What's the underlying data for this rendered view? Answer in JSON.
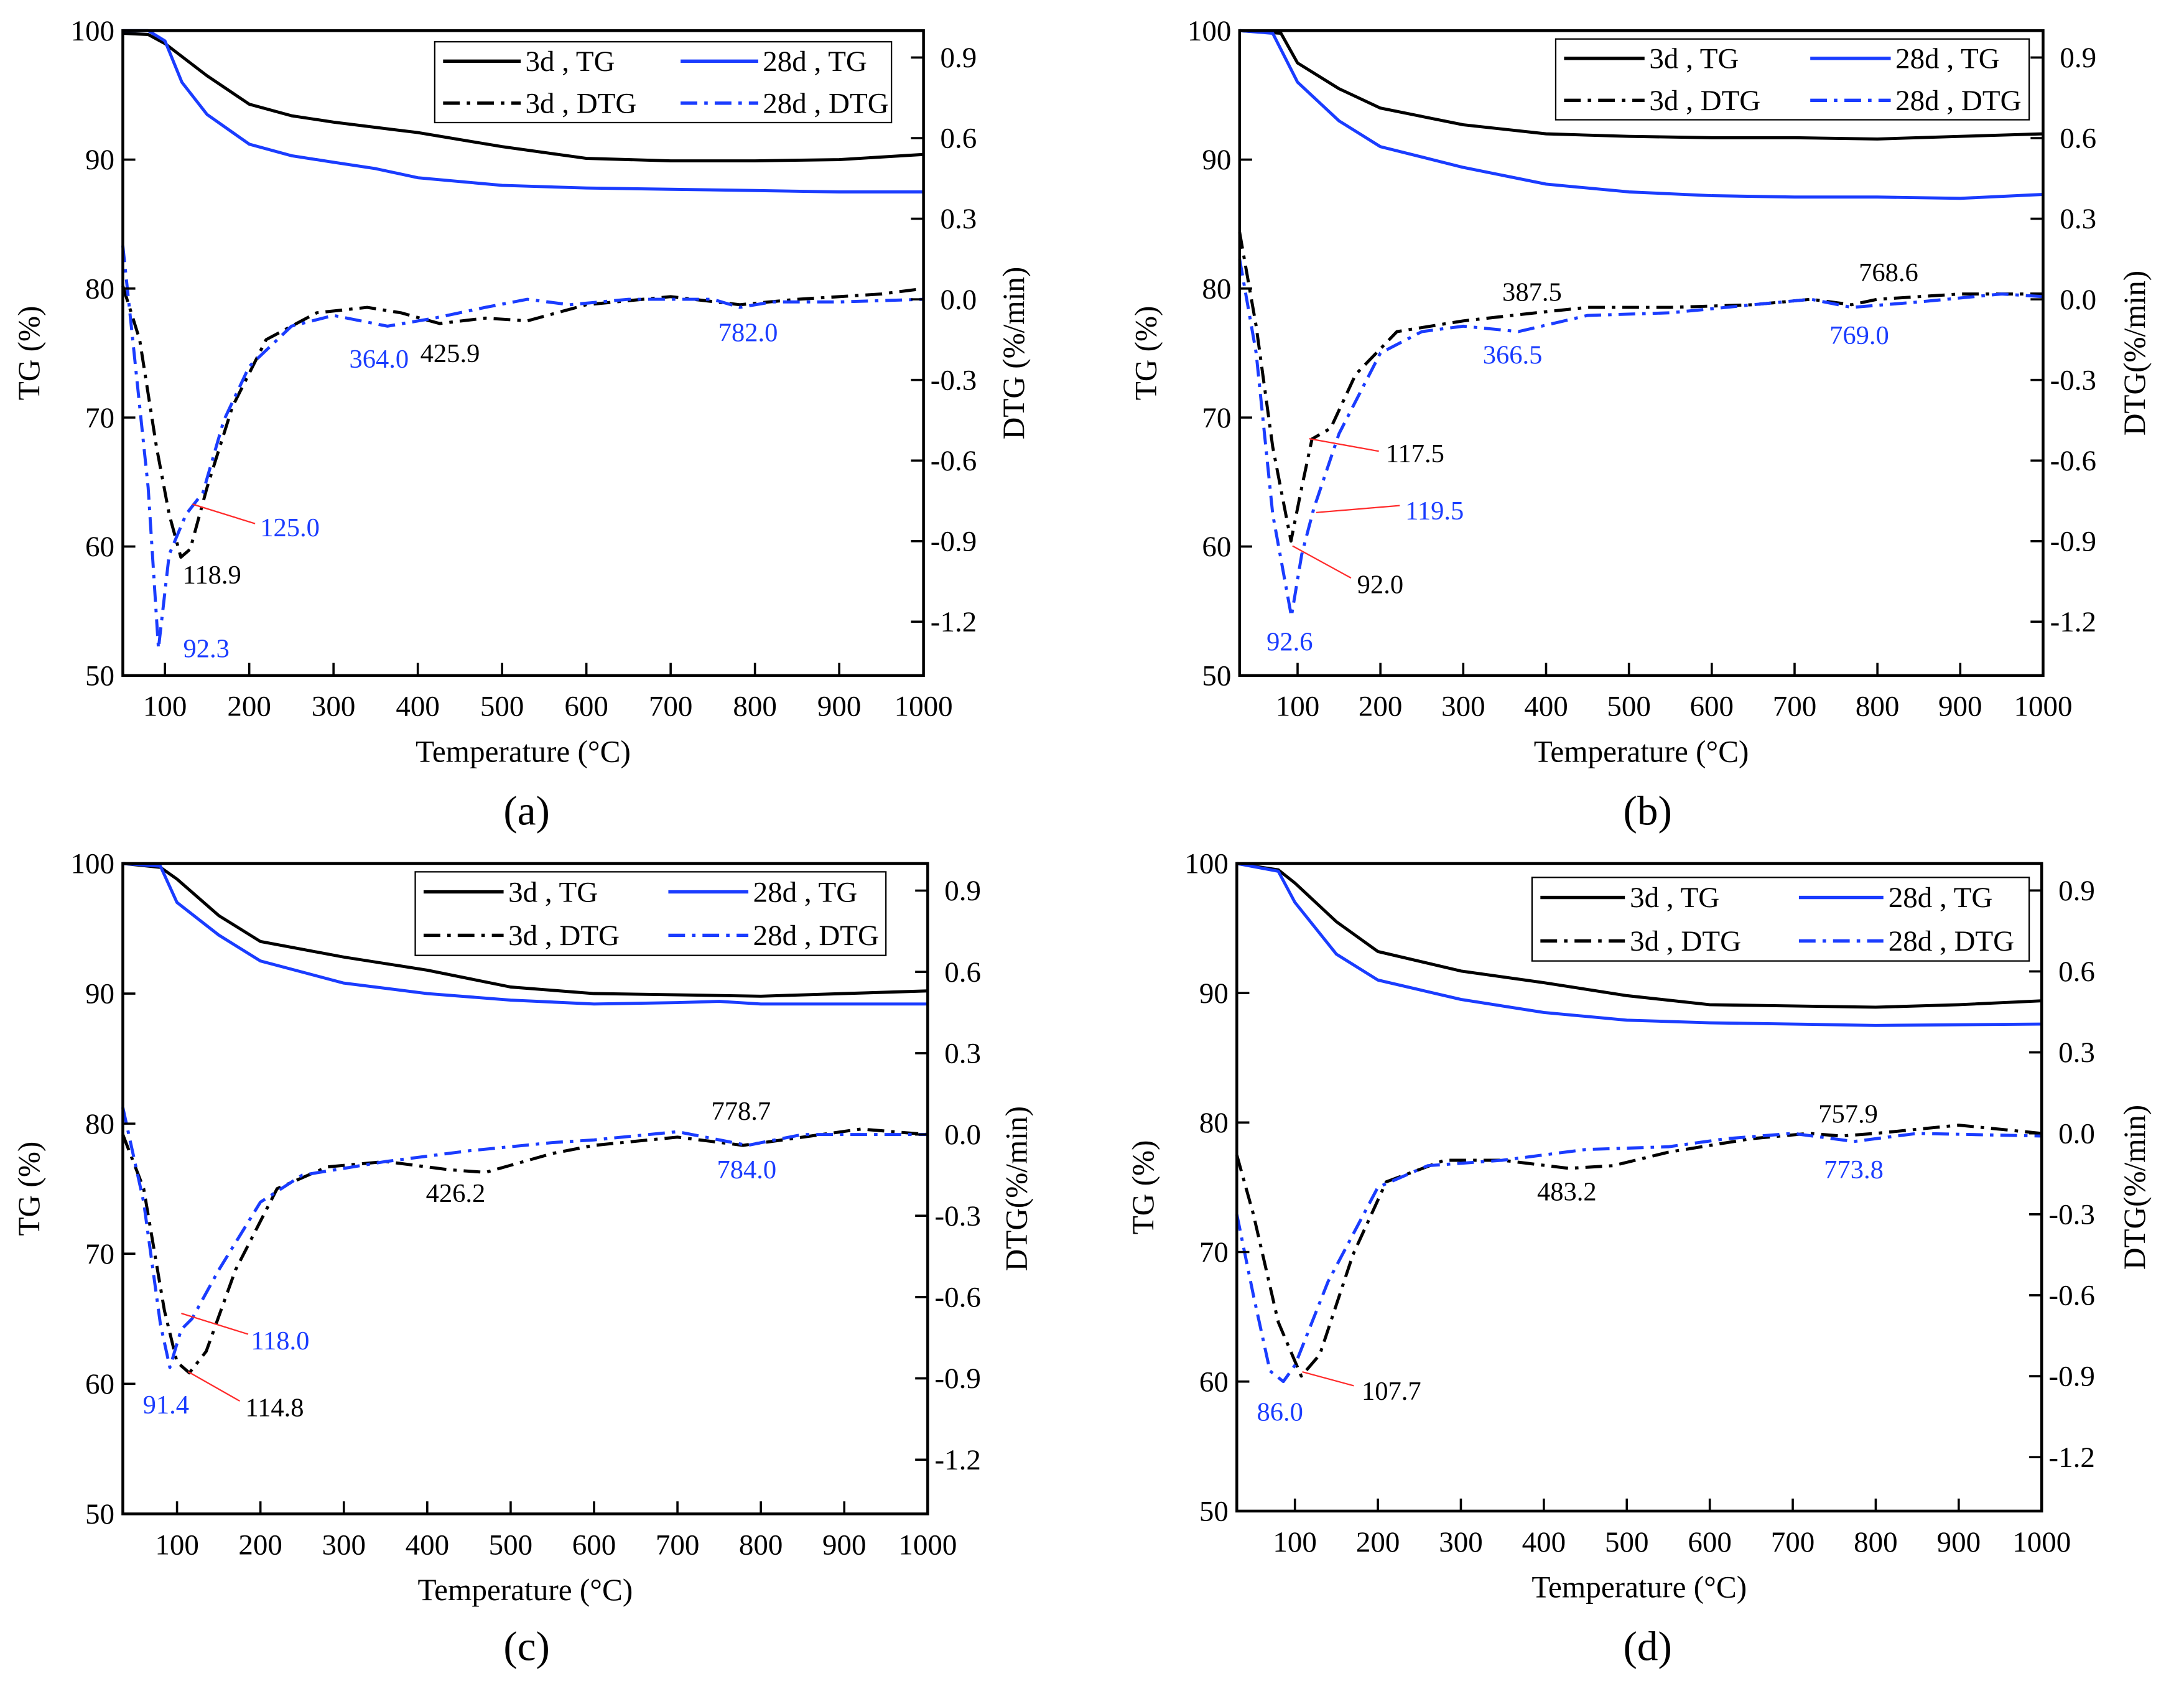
{
  "chart_data": [
    {
      "type": "line",
      "panel_label": "(a)",
      "xlabel": "Temperature (°C)",
      "ylabel": "TG (%)",
      "y2label": "DTG (%/min)",
      "xlim": [
        50,
        1000
      ],
      "ylim": [
        50,
        100
      ],
      "y2lim": [
        -1.4,
        1.0
      ],
      "xticks": [
        100,
        200,
        300,
        400,
        500,
        600,
        700,
        800,
        900,
        1000
      ],
      "yticks": [
        50,
        60,
        70,
        80,
        90,
        100
      ],
      "y2ticks": [
        "0.9",
        "0.6",
        "0.3",
        "0.0",
        "-0.3",
        "-0.6",
        "-0.9",
        "-1.2"
      ],
      "legend": [
        "3d , TG",
        "28d , TG",
        "3d , DTG",
        "28d , DTG"
      ],
      "legend_position": "top-right",
      "series": [
        {
          "name": "3d , TG",
          "axis": "left",
          "color": "#000000",
          "style": "solid",
          "x": [
            50,
            80,
            100,
            150,
            200,
            250,
            300,
            400,
            500,
            600,
            700,
            800,
            900,
            1000
          ],
          "y": [
            99.8,
            99.7,
            99,
            96.5,
            94.3,
            93.4,
            92.9,
            92.1,
            91,
            90.1,
            89.9,
            89.9,
            90,
            90.4
          ]
        },
        {
          "name": "28d , TG",
          "axis": "left",
          "color": "#1a3cff",
          "style": "solid",
          "x": [
            50,
            80,
            100,
            120,
            150,
            200,
            250,
            300,
            350,
            400,
            500,
            600,
            700,
            800,
            900,
            1000
          ],
          "y": [
            100,
            100,
            99.2,
            96,
            93.5,
            91.2,
            90.3,
            89.8,
            89.3,
            88.6,
            88,
            87.8,
            87.7,
            87.6,
            87.5,
            87.5
          ]
        },
        {
          "name": "3d , DTG",
          "axis": "right",
          "color": "#000000",
          "style": "dashdot",
          "x": [
            50,
            70,
            90,
            105,
            118.9,
            130,
            150,
            180,
            220,
            280,
            340,
            380,
            425.9,
            480,
            530,
            600,
            700,
            782,
            850,
            950,
            1000
          ],
          "y": [
            0.05,
            -0.15,
            -0.55,
            -0.8,
            -0.96,
            -0.93,
            -0.7,
            -0.4,
            -0.15,
            -0.05,
            -0.03,
            -0.05,
            -0.09,
            -0.07,
            -0.08,
            -0.02,
            0.01,
            -0.02,
            0.0,
            0.02,
            0.04
          ]
        },
        {
          "name": "28d , DTG",
          "axis": "right",
          "color": "#1a3cff",
          "style": "dashdot",
          "x": [
            50,
            60,
            80,
            92.3,
            105,
            125,
            145,
            170,
            200,
            250,
            300,
            364,
            420,
            480,
            530,
            580,
            650,
            750,
            782,
            820,
            900,
            1000
          ],
          "y": [
            0.2,
            -0.1,
            -0.7,
            -1.3,
            -0.95,
            -0.8,
            -0.72,
            -0.45,
            -0.25,
            -0.1,
            -0.06,
            -0.1,
            -0.07,
            -0.03,
            0.0,
            -0.02,
            0.0,
            0.0,
            -0.03,
            -0.01,
            -0.01,
            0.0
          ]
        }
      ],
      "annotations": [
        {
          "text": "125.0",
          "color": "#1a3cff",
          "leader": true
        },
        {
          "text": "118.9",
          "color": "#000000",
          "leader": false
        },
        {
          "text": "92.3",
          "color": "#1a3cff",
          "leader": false
        },
        {
          "text": "364.0",
          "color": "#1a3cff",
          "leader": false
        },
        {
          "text": "425.9",
          "color": "#000000",
          "leader": false
        },
        {
          "text": "782.0",
          "color": "#1a3cff",
          "leader": false
        }
      ]
    },
    {
      "type": "line",
      "panel_label": "(b)",
      "xlabel": "Temperature (°C)",
      "ylabel": "TG (%)",
      "y2label": "DTG(%/min)",
      "xlim": [
        30,
        1000
      ],
      "ylim": [
        50,
        100
      ],
      "y2lim": [
        -1.4,
        1.0
      ],
      "xticks": [
        100,
        200,
        300,
        400,
        500,
        600,
        700,
        800,
        900,
        1000
      ],
      "yticks": [
        50,
        60,
        70,
        80,
        90,
        100
      ],
      "y2ticks": [
        "0.9",
        "0.6",
        "0.3",
        "0.0",
        "-0.3",
        "-0.6",
        "-0.9",
        "-1.2"
      ],
      "legend": [
        "3d , TG",
        "28d , TG",
        "3d , DTG",
        "28d , DTG"
      ],
      "legend_position": "top-right",
      "series": [
        {
          "name": "3d , TG",
          "axis": "left",
          "color": "#000000",
          "style": "solid",
          "x": [
            30,
            80,
            100,
            150,
            200,
            300,
            400,
            500,
            600,
            700,
            800,
            900,
            1000
          ],
          "y": [
            100,
            99.8,
            97.5,
            95.5,
            94,
            92.7,
            92,
            91.8,
            91.7,
            91.7,
            91.6,
            91.8,
            92
          ]
        },
        {
          "name": "28d , TG",
          "axis": "left",
          "color": "#1a3cff",
          "style": "solid",
          "x": [
            30,
            70,
            100,
            150,
            200,
            300,
            400,
            500,
            600,
            700,
            800,
            900,
            1000
          ],
          "y": [
            100,
            99.8,
            96,
            93,
            91,
            89.4,
            88.1,
            87.5,
            87.2,
            87.1,
            87.1,
            87,
            87.3
          ]
        },
        {
          "name": "3d , DTG",
          "axis": "right",
          "color": "#000000",
          "style": "dashdot",
          "x": [
            30,
            50,
            70,
            92,
            105,
            117.5,
            140,
            170,
            220,
            300,
            387.5,
            450,
            550,
            650,
            720,
            768.6,
            800,
            900,
            1000
          ],
          "y": [
            0.25,
            -0.1,
            -0.55,
            -0.9,
            -0.7,
            -0.52,
            -0.48,
            -0.28,
            -0.12,
            -0.08,
            -0.05,
            -0.03,
            -0.03,
            -0.02,
            0.0,
            -0.02,
            0.0,
            0.02,
            0.02
          ]
        },
        {
          "name": "28d , DTG",
          "axis": "right",
          "color": "#1a3cff",
          "style": "dashdot",
          "x": [
            30,
            50,
            70,
            92.6,
            105,
            119.5,
            150,
            200,
            250,
            300,
            366.5,
            450,
            550,
            650,
            720,
            769,
            850,
            950,
            1000
          ],
          "y": [
            0.15,
            -0.2,
            -0.8,
            -1.18,
            -0.95,
            -0.78,
            -0.5,
            -0.2,
            -0.12,
            -0.1,
            -0.12,
            -0.06,
            -0.05,
            -0.02,
            0.0,
            -0.03,
            -0.01,
            0.02,
            0.01
          ]
        }
      ],
      "annotations": [
        {
          "text": "387.5",
          "color": "#000000",
          "leader": false
        },
        {
          "text": "768.6",
          "color": "#000000",
          "leader": false
        },
        {
          "text": "366.5",
          "color": "#1a3cff",
          "leader": false
        },
        {
          "text": "769.0",
          "color": "#1a3cff",
          "leader": false
        },
        {
          "text": "117.5",
          "color": "#000000",
          "leader": true
        },
        {
          "text": "119.5",
          "color": "#1a3cff",
          "leader": true
        },
        {
          "text": "92.0",
          "color": "#000000",
          "leader": true
        },
        {
          "text": "92.6",
          "color": "#1a3cff",
          "leader": false
        }
      ]
    },
    {
      "type": "line",
      "panel_label": "(c)",
      "xlabel": "Temperature (°C)",
      "ylabel": "TG (%)",
      "y2label": "DTG(%/min)",
      "xlim": [
        35,
        1000
      ],
      "ylim": [
        50,
        100
      ],
      "y2lim": [
        -1.4,
        1.0
      ],
      "xticks": [
        100,
        200,
        300,
        400,
        500,
        600,
        700,
        800,
        900,
        1000
      ],
      "yticks": [
        50,
        60,
        70,
        80,
        90,
        100
      ],
      "y2ticks": [
        "0.9",
        "0.6",
        "0.3",
        "0.0",
        "-0.3",
        "-0.6",
        "-0.9",
        "-1.2"
      ],
      "legend": [
        "3d , TG",
        "28d , TG",
        "3d , DTG",
        "28d , DTG"
      ],
      "legend_position": "top-right",
      "series": [
        {
          "name": "3d , TG",
          "axis": "left",
          "color": "#000000",
          "style": "solid",
          "x": [
            35,
            80,
            100,
            150,
            200,
            300,
            400,
            500,
            600,
            700,
            800,
            900,
            1000
          ],
          "y": [
            100,
            99.7,
            98.8,
            96,
            94,
            92.8,
            91.8,
            90.5,
            90,
            89.9,
            89.8,
            90,
            90.2
          ]
        },
        {
          "name": "28d , TG",
          "axis": "left",
          "color": "#1a3cff",
          "style": "solid",
          "x": [
            35,
            80,
            100,
            150,
            200,
            300,
            400,
            500,
            600,
            700,
            750,
            800,
            1000
          ],
          "y": [
            100,
            99.8,
            97,
            94.5,
            92.5,
            90.8,
            90,
            89.5,
            89.2,
            89.3,
            89.4,
            89.2,
            89.2
          ]
        },
        {
          "name": "3d , DTG",
          "axis": "right",
          "color": "#000000",
          "style": "dashdot",
          "x": [
            35,
            60,
            85,
            100,
            114.8,
            135,
            170,
            220,
            280,
            350,
            426.2,
            470,
            550,
            600,
            700,
            778.7,
            850,
            920,
            1000
          ],
          "y": [
            0.0,
            -0.2,
            -0.65,
            -0.84,
            -0.88,
            -0.8,
            -0.5,
            -0.2,
            -0.12,
            -0.1,
            -0.13,
            -0.14,
            -0.07,
            -0.04,
            -0.01,
            -0.04,
            -0.01,
            0.02,
            0.0
          ]
        },
        {
          "name": "28d , DTG",
          "axis": "right",
          "color": "#1a3cff",
          "style": "dashdot",
          "x": [
            35,
            60,
            80,
            91.4,
            105,
            118,
            150,
            200,
            250,
            350,
            450,
            550,
            600,
            700,
            784,
            850,
            1000
          ],
          "y": [
            0.1,
            -0.25,
            -0.7,
            -0.86,
            -0.72,
            -0.68,
            -0.5,
            -0.25,
            -0.15,
            -0.1,
            -0.06,
            -0.03,
            -0.02,
            0.01,
            -0.04,
            0.0,
            0.0
          ]
        }
      ],
      "annotations": [
        {
          "text": "426.2",
          "color": "#000000",
          "leader": false
        },
        {
          "text": "778.7",
          "color": "#000000",
          "leader": false
        },
        {
          "text": "784.0",
          "color": "#1a3cff",
          "leader": false
        },
        {
          "text": "118.0",
          "color": "#1a3cff",
          "leader": true
        },
        {
          "text": "91.4",
          "color": "#1a3cff",
          "leader": false
        },
        {
          "text": "114.8",
          "color": "#000000",
          "leader": true
        }
      ]
    },
    {
      "type": "line",
      "panel_label": "(d)",
      "xlabel": "Temperature (°C)",
      "ylabel": "TG (%)",
      "y2label": "DTG(%/min)",
      "xlim": [
        30,
        1000
      ],
      "ylim": [
        50,
        100
      ],
      "y2lim": [
        -1.4,
        1.0
      ],
      "xticks": [
        100,
        200,
        300,
        400,
        500,
        600,
        700,
        800,
        900,
        1000
      ],
      "yticks": [
        50,
        60,
        70,
        80,
        90,
        100
      ],
      "y2ticks": [
        "0.9",
        "0.6",
        "0.3",
        "0.0",
        "-0.3",
        "-0.6",
        "-0.9",
        "-1.2"
      ],
      "legend": [
        "3d , TG",
        "28d , TG",
        "3d , DTG",
        "28d , DTG"
      ],
      "legend_position": "top-right",
      "series": [
        {
          "name": "3d , TG",
          "axis": "left",
          "color": "#000000",
          "style": "solid",
          "x": [
            30,
            80,
            100,
            150,
            200,
            300,
            400,
            500,
            600,
            700,
            800,
            900,
            1000
          ],
          "y": [
            100,
            99.5,
            98.5,
            95.5,
            93.2,
            91.7,
            90.8,
            89.8,
            89.1,
            89,
            88.9,
            89.1,
            89.4
          ]
        },
        {
          "name": "28d , TG",
          "axis": "left",
          "color": "#1a3cff",
          "style": "solid",
          "x": [
            30,
            80,
            100,
            150,
            200,
            300,
            400,
            500,
            600,
            700,
            800,
            1000
          ],
          "y": [
            100,
            99.4,
            97,
            93,
            91,
            89.5,
            88.5,
            87.9,
            87.7,
            87.6,
            87.5,
            87.6
          ]
        },
        {
          "name": "3d , DTG",
          "axis": "right",
          "color": "#000000",
          "style": "dashdot",
          "x": [
            30,
            50,
            80,
            107.7,
            130,
            170,
            210,
            280,
            350,
            430,
            483.2,
            550,
            650,
            720,
            757.9,
            800,
            900,
            1000
          ],
          "y": [
            -0.08,
            -0.3,
            -0.7,
            -0.9,
            -0.82,
            -0.45,
            -0.18,
            -0.1,
            -0.1,
            -0.13,
            -0.12,
            -0.07,
            -0.02,
            0.0,
            -0.01,
            0.0,
            0.03,
            0.0
          ]
        },
        {
          "name": "28d , DTG",
          "axis": "right",
          "color": "#1a3cff",
          "style": "dashdot",
          "x": [
            30,
            50,
            70,
            86,
            100,
            140,
            200,
            260,
            350,
            450,
            550,
            620,
            700,
            773.8,
            850,
            1000
          ],
          "y": [
            -0.3,
            -0.6,
            -0.88,
            -0.92,
            -0.86,
            -0.55,
            -0.2,
            -0.12,
            -0.1,
            -0.06,
            -0.05,
            -0.02,
            0.0,
            -0.03,
            0.0,
            -0.01
          ]
        }
      ],
      "annotations": [
        {
          "text": "483.2",
          "color": "#000000",
          "leader": false
        },
        {
          "text": "757.9",
          "color": "#000000",
          "leader": false
        },
        {
          "text": "773.8",
          "color": "#1a3cff",
          "leader": false
        },
        {
          "text": "107.7",
          "color": "#000000",
          "leader": true
        },
        {
          "text": "86.0",
          "color": "#1a3cff",
          "leader": false
        }
      ]
    }
  ]
}
